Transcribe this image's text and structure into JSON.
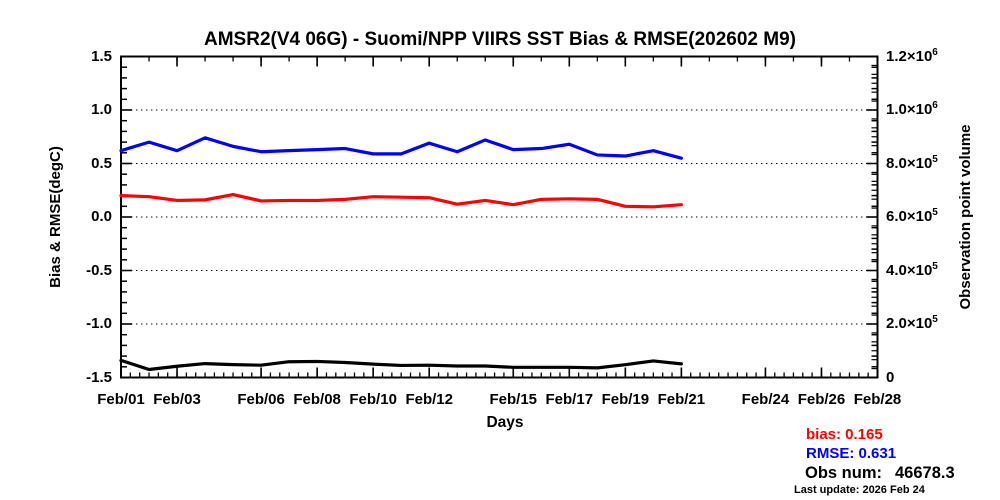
{
  "chart_data": {
    "type": "line",
    "title": "AMSR2(V4 06G) - Suomi/NPP VIIRS SST Bias & RMSE(202602 M9)",
    "xlabel": "Days",
    "ylabel_left": "Bias & RMSE(degC)",
    "ylabel_right": "Observation point volume",
    "ylim_left": [
      -1.5,
      1.5
    ],
    "ylim_right": [
      0,
      1200000
    ],
    "xlim_days": [
      1,
      28
    ],
    "grid": "horizontal dotted lines at left-axis major ticks",
    "legend_position": "stats text at bottom right, outside plot",
    "y_ticks_left": [
      {
        "v": 1.5,
        "label": "1.5"
      },
      {
        "v": 1.0,
        "label": "1.0"
      },
      {
        "v": 0.5,
        "label": "0.5"
      },
      {
        "v": 0.0,
        "label": "0.0"
      },
      {
        "v": -0.5,
        "label": "-0.5"
      },
      {
        "v": -1.0,
        "label": "-1.0"
      },
      {
        "v": -1.5,
        "label": "-1.5"
      }
    ],
    "y_ticks_right": [
      {
        "v": 1200000,
        "mantissa": "1.2×10",
        "exponent": "6"
      },
      {
        "v": 1000000,
        "mantissa": "1.0×10",
        "exponent": "6"
      },
      {
        "v": 800000,
        "mantissa": "8.0×10",
        "exponent": "5"
      },
      {
        "v": 600000,
        "mantissa": "6.0×10",
        "exponent": "5"
      },
      {
        "v": 400000,
        "mantissa": "4.0×10",
        "exponent": "5"
      },
      {
        "v": 200000,
        "mantissa": "2.0×10",
        "exponent": "5"
      },
      {
        "v": 0,
        "mantissa": "0",
        "exponent": ""
      }
    ],
    "x_tick_labels": [
      {
        "day": 1,
        "label": "Feb/01"
      },
      {
        "day": 3,
        "label": "Feb/03"
      },
      {
        "day": 6,
        "label": "Feb/06"
      },
      {
        "day": 8,
        "label": "Feb/08"
      },
      {
        "day": 10,
        "label": "Feb/10"
      },
      {
        "day": 12,
        "label": "Feb/12"
      },
      {
        "day": 15,
        "label": "Feb/15"
      },
      {
        "day": 17,
        "label": "Feb/17"
      },
      {
        "day": 19,
        "label": "Feb/19"
      },
      {
        "day": 21,
        "label": "Feb/21"
      },
      {
        "day": 24,
        "label": "Feb/24"
      },
      {
        "day": 26,
        "label": "Feb/26"
      },
      {
        "day": 28,
        "label": "Feb/28"
      }
    ],
    "x_days": [
      1,
      2,
      3,
      4,
      5,
      6,
      7,
      8,
      9,
      10,
      11,
      12,
      13,
      14,
      15,
      16,
      17,
      18,
      19,
      20,
      21
    ],
    "x_categories": [
      "Feb/01",
      "Feb/02",
      "Feb/03",
      "Feb/04",
      "Feb/05",
      "Feb/06",
      "Feb/07",
      "Feb/08",
      "Feb/09",
      "Feb/10",
      "Feb/11",
      "Feb/12",
      "Feb/13",
      "Feb/14",
      "Feb/15",
      "Feb/16",
      "Feb/17",
      "Feb/18",
      "Feb/19",
      "Feb/20",
      "Feb/21"
    ],
    "series": [
      {
        "name": "bias",
        "color": "#ff0000",
        "axis": "left",
        "values": [
          0.2,
          0.19,
          0.155,
          0.16,
          0.21,
          0.15,
          0.155,
          0.155,
          0.165,
          0.19,
          0.185,
          0.18,
          0.12,
          0.155,
          0.115,
          0.165,
          0.17,
          0.165,
          0.1,
          0.095,
          0.115
        ]
      },
      {
        "name": "rmse",
        "color": "#0000ff",
        "axis": "left",
        "values": [
          0.62,
          0.7,
          0.62,
          0.74,
          0.66,
          0.61,
          0.62,
          0.63,
          0.64,
          0.59,
          0.59,
          0.69,
          0.61,
          0.72,
          0.63,
          0.64,
          0.68,
          0.58,
          0.57,
          0.62,
          0.55
        ]
      },
      {
        "name": "observation_volume",
        "color": "#000000",
        "axis": "right",
        "values": [
          64000,
          30000,
          42000,
          52000,
          48000,
          46000,
          59000,
          60000,
          56000,
          50000,
          45000,
          46000,
          43000,
          43000,
          38000,
          38000,
          38000,
          36000,
          48000,
          62000,
          51000
        ]
      }
    ]
  },
  "stats": {
    "bias": "bias: 0.165",
    "rmse": "RMSE: 0.631",
    "obs_label": "Obs num:",
    "obs_value": "46678.3",
    "last_update": "Last update: 2026 Feb 24"
  },
  "colors": {
    "bias": "#ff0000",
    "rmse": "#0000ff",
    "observation_volume": "#000000",
    "axis": "#000000",
    "background": "#ffffff"
  }
}
